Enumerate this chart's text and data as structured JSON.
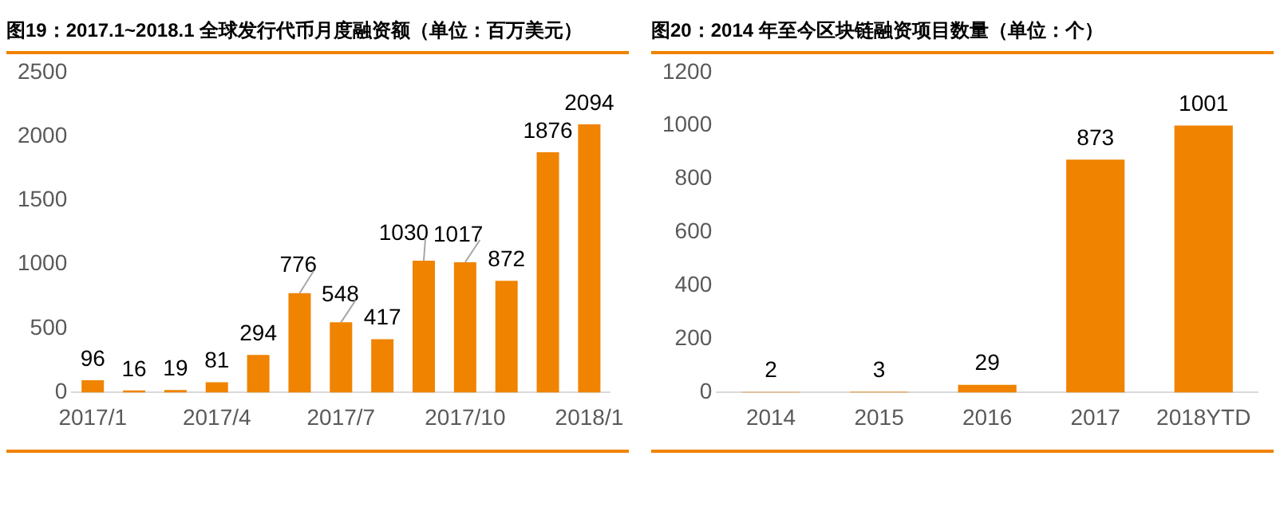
{
  "chart_data": [
    {
      "type": "bar",
      "title": "图19：2017.1~2018.1 全球发行代币月度融资额（单位：百万美元）",
      "categories": [
        "2017/1",
        null,
        null,
        "2017/4",
        null,
        null,
        "2017/7",
        null,
        null,
        "2017/10",
        null,
        null,
        "2018/1"
      ],
      "values": [
        96,
        16,
        19,
        81,
        294,
        776,
        548,
        417,
        1030,
        1017,
        872,
        1876,
        2094
      ],
      "color": "#f08300",
      "ylim": [
        0,
        2500
      ],
      "yticks": [
        0,
        500,
        1000,
        1500,
        2000,
        2500
      ],
      "grid": false,
      "data_labels": true
    },
    {
      "type": "bar",
      "title": "图20：2014 年至今区块链融资项目数量（单位：个）",
      "categories": [
        "2014",
        "2015",
        "2016",
        "2017",
        "2018YTD"
      ],
      "values": [
        2,
        3,
        29,
        873,
        1001
      ],
      "color": "#f08300",
      "ylim": [
        0,
        1200
      ],
      "yticks": [
        0,
        200,
        400,
        600,
        800,
        1000,
        1200
      ],
      "grid": false,
      "data_labels": true
    }
  ]
}
